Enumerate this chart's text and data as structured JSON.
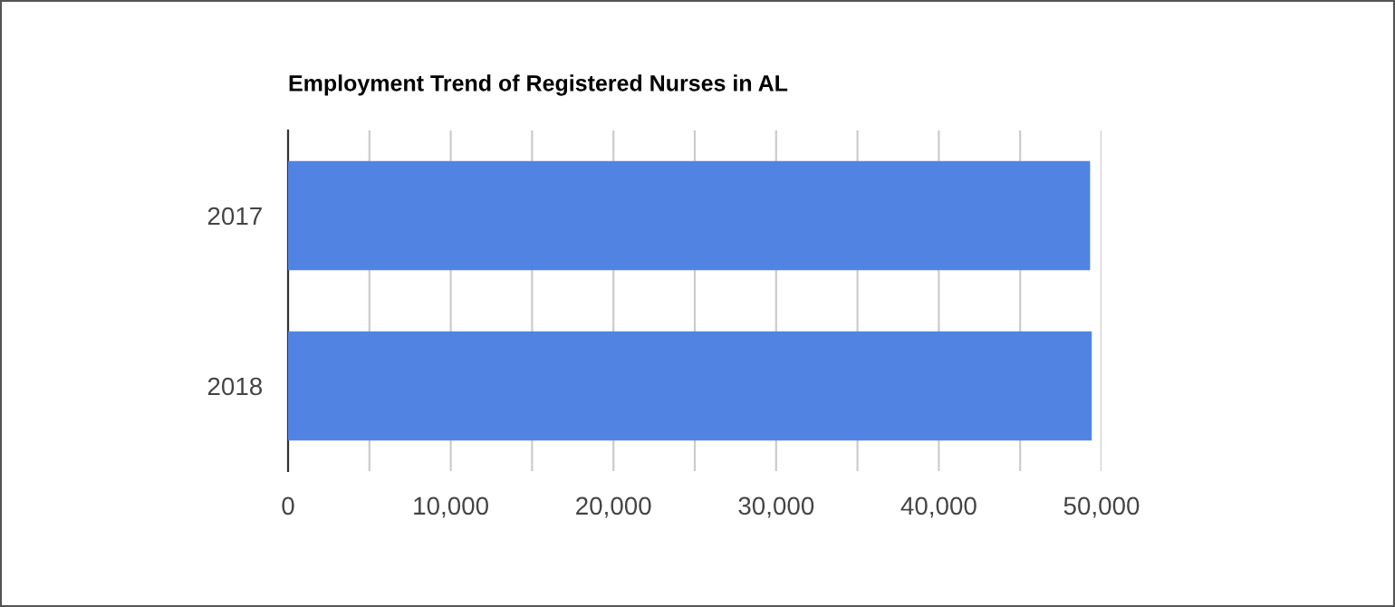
{
  "chart_data": {
    "type": "bar",
    "orientation": "horizontal",
    "title": "Employment Trend of Registered Nurses in AL",
    "categories": [
      "2017",
      "2018"
    ],
    "series": [
      {
        "color": "#5083e2",
        "values": [
          49300,
          49400
        ]
      }
    ],
    "xlim": [
      0,
      50000
    ],
    "xticks": [
      0,
      {
        "value": 5000,
        "label": null
      },
      {
        "value": 10000,
        "label": "10,000"
      },
      {
        "value": 15000,
        "label": null
      },
      {
        "value": 20000,
        "label": "20,000"
      },
      {
        "value": 25000,
        "label": null
      },
      {
        "value": 30000,
        "label": "30,000"
      },
      {
        "value": 35000,
        "label": null
      },
      {
        "value": 40000,
        "label": "40,000"
      },
      {
        "value": 45000,
        "label": null
      },
      {
        "value": 50000,
        "label": "50,000"
      }
    ],
    "grid": "x",
    "legend": false
  }
}
